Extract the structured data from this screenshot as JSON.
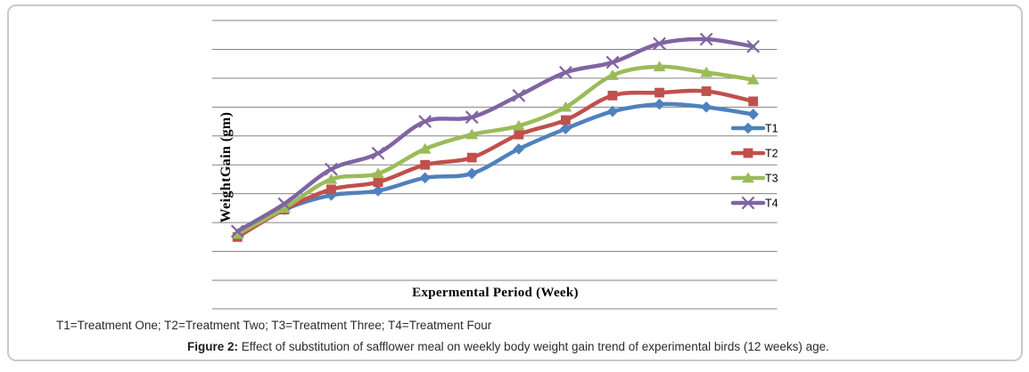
{
  "figure": {
    "caption_definitions": "T1=Treatment One; T2=Treatment Two; T3=Treatment Three; T4=Treatment Four",
    "caption_label": "Figure 2:",
    "caption_text": "Effect of substitution of safflower meal on weekly body weight gain trend of experimental birds (12 weeks) age."
  },
  "chart_data": {
    "type": "line",
    "title": "",
    "xlabel": "Expermental Period (Week)",
    "ylabel": "WeightGain (gm)",
    "x": [
      1,
      2,
      3,
      4,
      5,
      6,
      7,
      8,
      9,
      10,
      11,
      12
    ],
    "axes": {
      "x_tick_labels_visible": false,
      "y_tick_labels_visible": false,
      "y_gridline_count": 10,
      "y_range_gridline_units": [
        0,
        9
      ],
      "grid": "horizontal-only",
      "value_units": "gridline units (axis unlabeled in figure; values estimated from gridlines)"
    },
    "smoothed_lines": true,
    "gridline_color": "#838383",
    "legend": {
      "position": "inside-right",
      "items": [
        "T1",
        "T2",
        "T3",
        "T4"
      ]
    },
    "series": [
      {
        "name": "T1",
        "marker": "diamond",
        "color": "#4F81BD",
        "values": [
          1.55,
          2.45,
          2.95,
          3.1,
          3.55,
          3.7,
          4.55,
          5.25,
          5.85,
          6.1,
          6.0,
          5.75
        ]
      },
      {
        "name": "T2",
        "marker": "square",
        "color": "#C0504D",
        "values": [
          1.5,
          2.45,
          3.15,
          3.4,
          4.0,
          4.25,
          5.05,
          5.55,
          6.4,
          6.5,
          6.55,
          6.2
        ]
      },
      {
        "name": "T3",
        "marker": "triangle",
        "color": "#9BBB59",
        "values": [
          1.6,
          2.5,
          3.5,
          3.7,
          4.55,
          5.05,
          5.35,
          6.0,
          7.1,
          7.4,
          7.2,
          6.95
        ]
      },
      {
        "name": "T4",
        "marker": "x",
        "color": "#8064A2",
        "values": [
          1.7,
          2.65,
          3.85,
          4.4,
          5.5,
          5.65,
          6.4,
          7.2,
          7.55,
          8.2,
          8.35,
          8.1
        ]
      }
    ]
  }
}
